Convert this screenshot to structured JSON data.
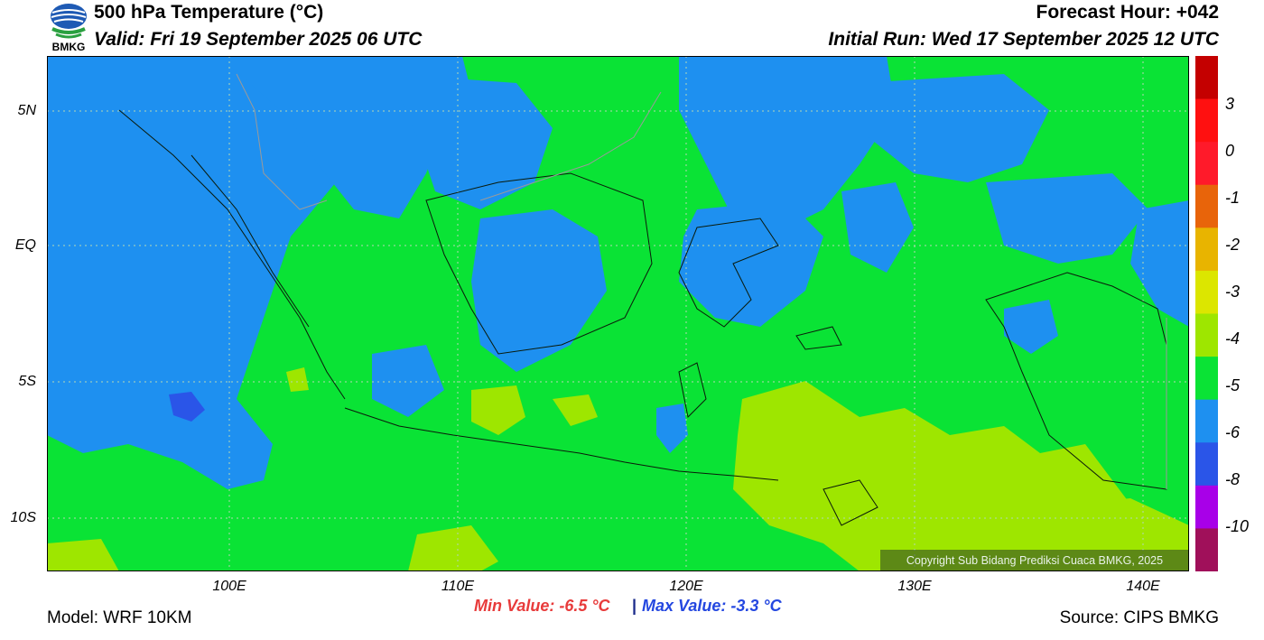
{
  "header": {
    "title": "500 hPa Temperature (°C)",
    "valid": "Valid: Fri 19 September 2025 06 UTC",
    "forecast_hour": "Forecast Hour: +042",
    "initial_run": "Initial Run: Wed 17 September 2025 12 UTC"
  },
  "logo": {
    "text": "BMKG"
  },
  "axes": {
    "lat_labels": [
      "5N",
      "EQ",
      "5S",
      "10S"
    ],
    "lon_labels": [
      "100E",
      "110E",
      "120E",
      "130E",
      "140E"
    ]
  },
  "legend": {
    "colors": [
      "#c40000",
      "#ff1010",
      "#ff1a2a",
      "#e8640a",
      "#e8b400",
      "#dce600",
      "#9ee600",
      "#0ae335",
      "#1e90f0",
      "#2a55e8",
      "#a800e8",
      "#a0105a"
    ],
    "labels": [
      "3",
      "0",
      "-1",
      "-2",
      "-3",
      "-4",
      "-5",
      "-6",
      "-8",
      "-10"
    ]
  },
  "stats": {
    "min": "Min Value: -6.5 °C",
    "separator": "|",
    "max": "Max Value: -3.3 °C"
  },
  "footer": {
    "model": "Model: WRF 10KM",
    "source": "Source: CIPS BMKG",
    "copyright": "Copyright Sub Bidang Prediksi Cuaca BMKG, 2025"
  },
  "colors": {
    "green_field": "#0ae335",
    "blue_field": "#1e90f0",
    "lightgreen_field": "#9ee600",
    "darkblue_patch": "#2a55e8"
  }
}
